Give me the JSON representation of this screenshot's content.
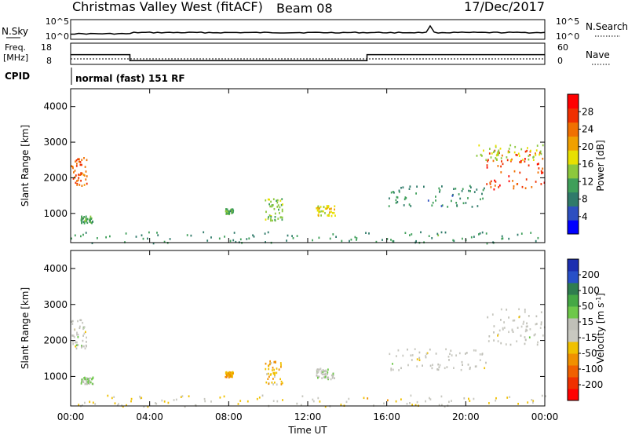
{
  "header": {
    "station": "Christmas Valley West (fitACF)",
    "beam": "Beam 08",
    "date": "17/Dec/2017"
  },
  "noise_panel": {
    "left_label": "N.Sky",
    "right_label": "N.Search",
    "left_ticks": [
      "10^5",
      "10^0"
    ],
    "right_ticks": [
      "10^5",
      "10^0"
    ]
  },
  "freq_panel": {
    "left_label_line1": "Freq.",
    "left_label_line2": "[MHz]",
    "right_label": "Nave",
    "left_ticks": [
      "18",
      "8"
    ],
    "right_ticks": [
      "60",
      "0"
    ],
    "freq_steps": [
      {
        "start_hr": 0.0,
        "end_hr": 3.0,
        "freq_mhz": 14.5
      },
      {
        "start_hr": 3.0,
        "end_hr": 15.0,
        "freq_mhz": 10.5
      },
      {
        "start_hr": 15.0,
        "end_hr": 24.0,
        "freq_mhz": 14.5
      }
    ],
    "nave_level": 22
  },
  "cpid": {
    "label": "CPID",
    "value": "normal (fast) 151 RF"
  },
  "colors": {
    "power": [
      "#0000ff",
      "#2d4fc0",
      "#2f7a6a",
      "#3f9f5a",
      "#8cc83c",
      "#e8e000",
      "#f0a000",
      "#f07000",
      "#f03000",
      "#ff0000"
    ],
    "velocity": [
      "#1c2fb0",
      "#2850c8",
      "#2f7d4f",
      "#45a845",
      "#6ec84a",
      "#c0c0b8",
      "#c8c8c0",
      "#f0c000",
      "#f09000",
      "#f06000",
      "#f03000",
      "#ff0000"
    ]
  },
  "chart_data": [
    {
      "type": "heatmap",
      "name": "power",
      "xlabel": "",
      "ylabel": "Slant Range [km]",
      "xlim": [
        0,
        24
      ],
      "ylim": [
        180,
        4500
      ],
      "yticks": [
        "1000",
        "2000",
        "3000",
        "4000"
      ],
      "colorbar": {
        "label": "Power [dB]",
        "ticks": [
          "4",
          "8",
          "12",
          "16",
          "20",
          "24",
          "28"
        ],
        "range": [
          0,
          32
        ]
      },
      "regions": [
        {
          "x0": 0.0,
          "x1": 0.8,
          "y0": 1800,
          "y1": 2600,
          "value": 25
        },
        {
          "x0": 0.5,
          "x1": 1.1,
          "y0": 750,
          "y1": 950,
          "value": 12
        },
        {
          "x0": 9.8,
          "x1": 10.7,
          "y0": 800,
          "y1": 1450,
          "value": 14
        },
        {
          "x0": 12.4,
          "x1": 13.4,
          "y0": 950,
          "y1": 1250,
          "value": 18
        },
        {
          "x0": 7.8,
          "x1": 8.2,
          "y0": 1000,
          "y1": 1150,
          "value": 12
        },
        {
          "x0": 16.0,
          "x1": 21.0,
          "y0": 1200,
          "y1": 1800,
          "value": 9
        },
        {
          "x0": 21.0,
          "x1": 24.0,
          "y0": 1700,
          "y1": 2800,
          "value": 27
        },
        {
          "x0": 20.5,
          "x1": 24.0,
          "y0": 2500,
          "y1": 2950,
          "value": 16
        },
        {
          "x0": 0.0,
          "x1": 24.0,
          "y0": 180,
          "y1": 500,
          "value": 10
        }
      ]
    },
    {
      "type": "heatmap",
      "name": "velocity",
      "xlabel": "Time UT",
      "ylabel": "Slant Range [km]",
      "xlim": [
        0,
        24
      ],
      "ylim": [
        180,
        4500
      ],
      "xticks": [
        "00:00",
        "04:00",
        "08:00",
        "12:00",
        "16:00",
        "20:00",
        "00:00"
      ],
      "yticks": [
        "1000",
        "2000",
        "3000",
        "4000"
      ],
      "colorbar": {
        "label": "Velocity [m s^-1]",
        "ticks": [
          "200",
          "100",
          "50",
          "15",
          "-15",
          "-50",
          "-100",
          "-200"
        ],
        "range": [
          -250,
          250
        ]
      },
      "regions": [
        {
          "x0": 0.0,
          "x1": 0.8,
          "y0": 1800,
          "y1": 2600,
          "value": 0
        },
        {
          "x0": 0.5,
          "x1": 1.1,
          "y0": 800,
          "y1": 1000,
          "value": 40
        },
        {
          "x0": 7.8,
          "x1": 8.2,
          "y0": 1000,
          "y1": 1150,
          "value": -90
        },
        {
          "x0": 9.8,
          "x1": 10.7,
          "y0": 800,
          "y1": 1450,
          "value": -70
        },
        {
          "x0": 12.4,
          "x1": 13.4,
          "y0": 950,
          "y1": 1250,
          "value": 10
        },
        {
          "x0": 16.0,
          "x1": 21.0,
          "y0": 1200,
          "y1": 1800,
          "value": 0
        },
        {
          "x0": 21.0,
          "x1": 24.0,
          "y0": 1900,
          "y1": 2900,
          "value": 0
        },
        {
          "x0": 0.0,
          "x1": 24.0,
          "y0": 180,
          "y1": 500,
          "value": -40
        }
      ]
    }
  ]
}
